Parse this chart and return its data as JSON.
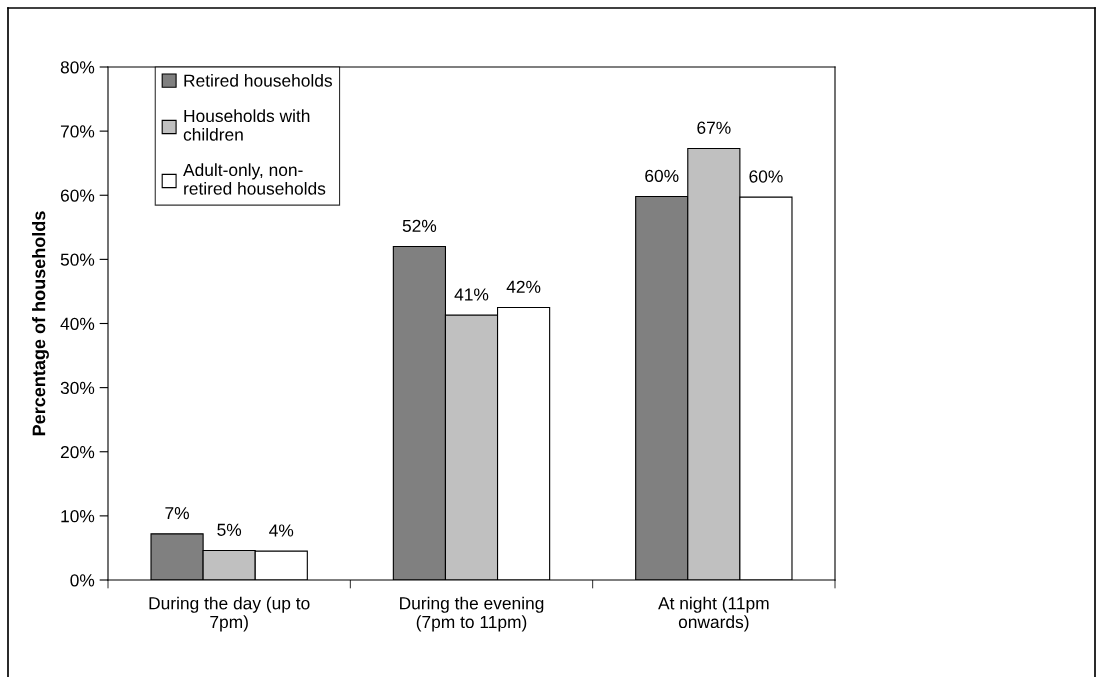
{
  "chart_data": {
    "type": "bar",
    "categories": [
      "During the day (up to\n7pm)",
      "During the evening\n(7pm to 11pm)",
      "At night (11pm\nonwards)"
    ],
    "series": [
      {
        "name": "Retired households",
        "color": "#808080",
        "values": [
          7.2,
          52,
          59.8
        ],
        "value_labels": [
          "7%",
          "52%",
          "60%"
        ]
      },
      {
        "name": "Households with\nchildren",
        "color": "#c0c0c0",
        "values": [
          4.6,
          41.3,
          67.3
        ],
        "value_labels": [
          "5%",
          "41%",
          "67%"
        ]
      },
      {
        "name": "Adult-only, non-\nretired households",
        "color": "#ffffff",
        "values": [
          4.5,
          42.5,
          59.7
        ],
        "value_labels": [
          "4%",
          "42%",
          "60%"
        ]
      }
    ],
    "ylabel": "Percentage of households",
    "ylim": [
      0,
      80
    ],
    "yticks": [
      {
        "value": 0,
        "label": "0%"
      },
      {
        "value": 10,
        "label": "10%"
      },
      {
        "value": 20,
        "label": "20%"
      },
      {
        "value": 30,
        "label": "30%"
      },
      {
        "value": 40,
        "label": "40%"
      },
      {
        "value": 50,
        "label": "50%"
      },
      {
        "value": 60,
        "label": "60%"
      },
      {
        "value": 70,
        "label": "70%"
      },
      {
        "value": 80,
        "label": "80%"
      }
    ],
    "legend": "top left",
    "grid": false
  }
}
